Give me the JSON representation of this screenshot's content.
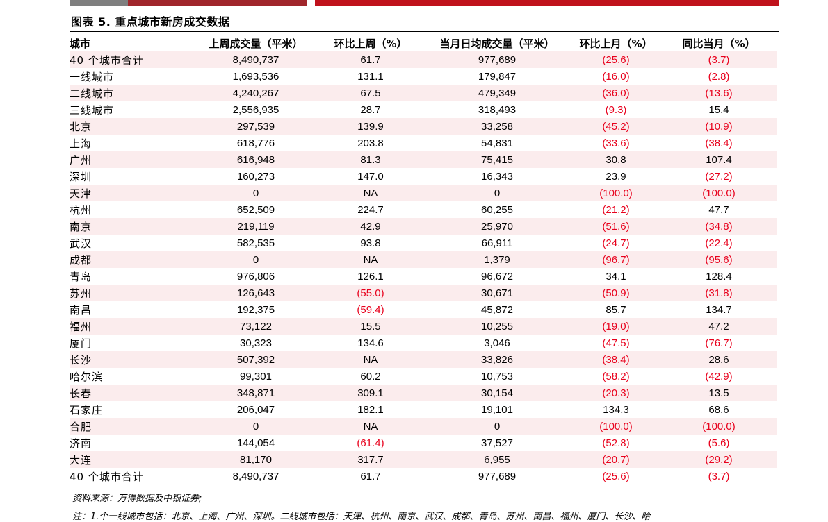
{
  "figure_title": "图表 5. 重点城市新房成交数据",
  "columns": [
    "城市",
    "上周成交量（平米）",
    "环比上周（%）",
    "当月日均成交量（平米）",
    "环比上月（%）",
    "同比当月（%）"
  ],
  "rows": [
    [
      "40 个城市合计",
      "8,490,737",
      "61.7",
      "977,689",
      "(25.6)",
      "(3.7)"
    ],
    [
      "一线城市",
      "1,693,536",
      "131.1",
      "179,847",
      "(16.0)",
      "(2.8)"
    ],
    [
      "二线城市",
      "4,240,267",
      "67.5",
      "479,349",
      "(36.0)",
      "(13.6)"
    ],
    [
      "三线城市",
      "2,556,935",
      "28.7",
      "318,493",
      "(9.3)",
      "15.4"
    ],
    [
      "北京",
      "297,539",
      "139.9",
      "33,258",
      "(45.2)",
      "(10.9)"
    ],
    [
      "上海",
      "618,776",
      "203.8",
      "54,831",
      "(33.6)",
      "(38.4)"
    ],
    [
      "广州",
      "616,948",
      "81.3",
      "75,415",
      "30.8",
      "107.4"
    ],
    [
      "深圳",
      "160,273",
      "147.0",
      "16,343",
      "23.9",
      "(27.2)"
    ],
    [
      "天津",
      "0",
      "NA",
      "0",
      "(100.0)",
      "(100.0)"
    ],
    [
      "杭州",
      "652,509",
      "224.7",
      "60,255",
      "(21.2)",
      "47.7"
    ],
    [
      "南京",
      "219,119",
      "42.9",
      "25,970",
      "(51.6)",
      "(34.8)"
    ],
    [
      "武汉",
      "582,535",
      "93.8",
      "66,911",
      "(24.7)",
      "(22.4)"
    ],
    [
      "成都",
      "0",
      "NA",
      "1,379",
      "(96.7)",
      "(95.6)"
    ],
    [
      "青岛",
      "976,806",
      "126.1",
      "96,672",
      "34.1",
      "128.4"
    ],
    [
      "苏州",
      "126,643",
      "(55.0)",
      "30,671",
      "(50.9)",
      "(31.8)"
    ],
    [
      "南昌",
      "192,375",
      "(59.4)",
      "45,872",
      "85.7",
      "134.7"
    ],
    [
      "福州",
      "73,122",
      "15.5",
      "10,255",
      "(19.0)",
      "47.2"
    ],
    [
      "厦门",
      "30,323",
      "134.6",
      "3,046",
      "(47.5)",
      "(76.7)"
    ],
    [
      "长沙",
      "507,392",
      "NA",
      "33,826",
      "(38.4)",
      "28.6"
    ],
    [
      "哈尔滨",
      "99,301",
      "60.2",
      "10,753",
      "(58.2)",
      "(42.9)"
    ],
    [
      "长春",
      "348,871",
      "309.1",
      "30,154",
      "(20.3)",
      "13.5"
    ],
    [
      "石家庄",
      "206,047",
      "182.1",
      "19,101",
      "134.3",
      "68.6"
    ],
    [
      "合肥",
      "0",
      "NA",
      "0",
      "(100.0)",
      "(100.0)"
    ],
    [
      "济南",
      "144,054",
      "(61.4)",
      "37,527",
      "(52.8)",
      "(5.6)"
    ],
    [
      "大连",
      "81,170",
      "317.7",
      "6,955",
      "(20.7)",
      "(29.2)"
    ],
    [
      "40 个城市合计",
      "8,490,737",
      "61.7",
      "977,689",
      "(25.6)",
      "(3.7)"
    ]
  ],
  "source": "资料来源：万得数据及中银证券;",
  "note": "注：1.个一线城市包括：北京、上海、广州、深圳。二线城市包括：天津、杭州、南京、武汉、成都、青岛、苏州、南昌、福州、厦门、长沙、哈",
  "colors": {
    "negative": "#e8001c",
    "shade": "#fbeced",
    "accent_red": "#c0121c",
    "accent_darkred": "#a0262b",
    "accent_gray": "#7f7f7f"
  }
}
